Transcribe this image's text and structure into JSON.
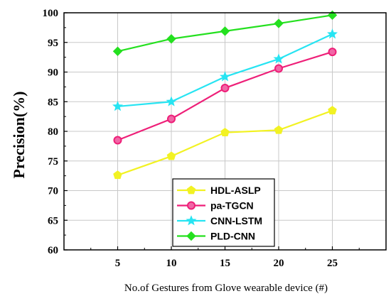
{
  "chart_data": {
    "type": "line",
    "xlabel": "No.of Gestures from Glove wearable device (#)",
    "ylabel": "Precision(%)",
    "x": [
      5,
      10,
      15,
      20,
      25
    ],
    "xlim": [
      0,
      30
    ],
    "ylim": [
      60,
      100
    ],
    "x_ticks": [
      "5",
      "10",
      "15",
      "20",
      "25"
    ],
    "y_ticks": [
      "60",
      "65",
      "70",
      "75",
      "80",
      "85",
      "90",
      "95",
      "100"
    ],
    "grid": true,
    "legend_position": "bottom-center",
    "series": [
      {
        "name": "HDL-ASLP",
        "color": "#f2f223",
        "marker": "pentagon",
        "values": [
          72.6,
          75.8,
          79.8,
          80.2,
          83.5
        ]
      },
      {
        "name": "pa-TGCN",
        "color": "#ee1f78",
        "marker": "circle",
        "values": [
          78.5,
          82.1,
          87.3,
          90.6,
          93.4
        ]
      },
      {
        "name": "CNN-LSTM",
        "color": "#27e4f2",
        "marker": "star",
        "values": [
          84.2,
          85.0,
          89.2,
          92.2,
          96.4
        ]
      },
      {
        "name": "PLD-CNN",
        "color": "#24e01f",
        "marker": "diamond",
        "values": [
          93.5,
          95.6,
          96.9,
          98.2,
          99.6
        ]
      }
    ]
  }
}
